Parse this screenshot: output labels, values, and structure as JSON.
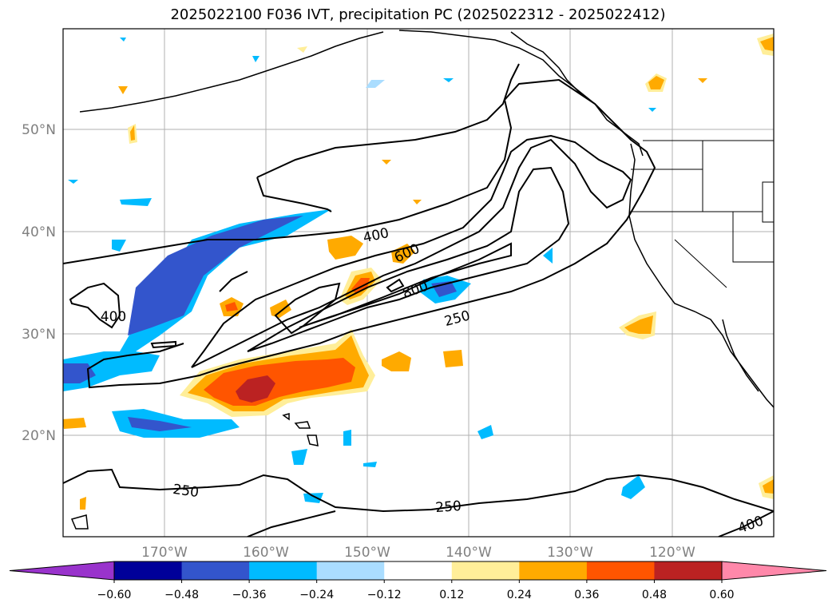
{
  "title": "2025022100 F036 IVT, precipitation PC (2025022312 - 2025022412)",
  "map": {
    "lat_labels": [
      "50°N",
      "40°N",
      "30°N",
      "20°N"
    ],
    "lon_labels": [
      "170°W",
      "160°W",
      "150°W",
      "140°W",
      "130°W",
      "120°W"
    ],
    "contour_labels": [
      "400",
      "600",
      "800",
      "250",
      "400",
      "250",
      "250",
      "400"
    ]
  },
  "colorbar": {
    "ticks": [
      "−0.60",
      "−0.48",
      "−0.36",
      "−0.24",
      "−0.12",
      "0.12",
      "0.24",
      "0.36",
      "0.48",
      "0.60"
    ],
    "colors": [
      "#9933cc",
      "#000099",
      "#3355cc",
      "#00bbff",
      "#aaddff",
      "#ffffff",
      "#ffee99",
      "#ffaa00",
      "#ff5500",
      "#bb2222",
      "#ff88aa"
    ]
  }
}
